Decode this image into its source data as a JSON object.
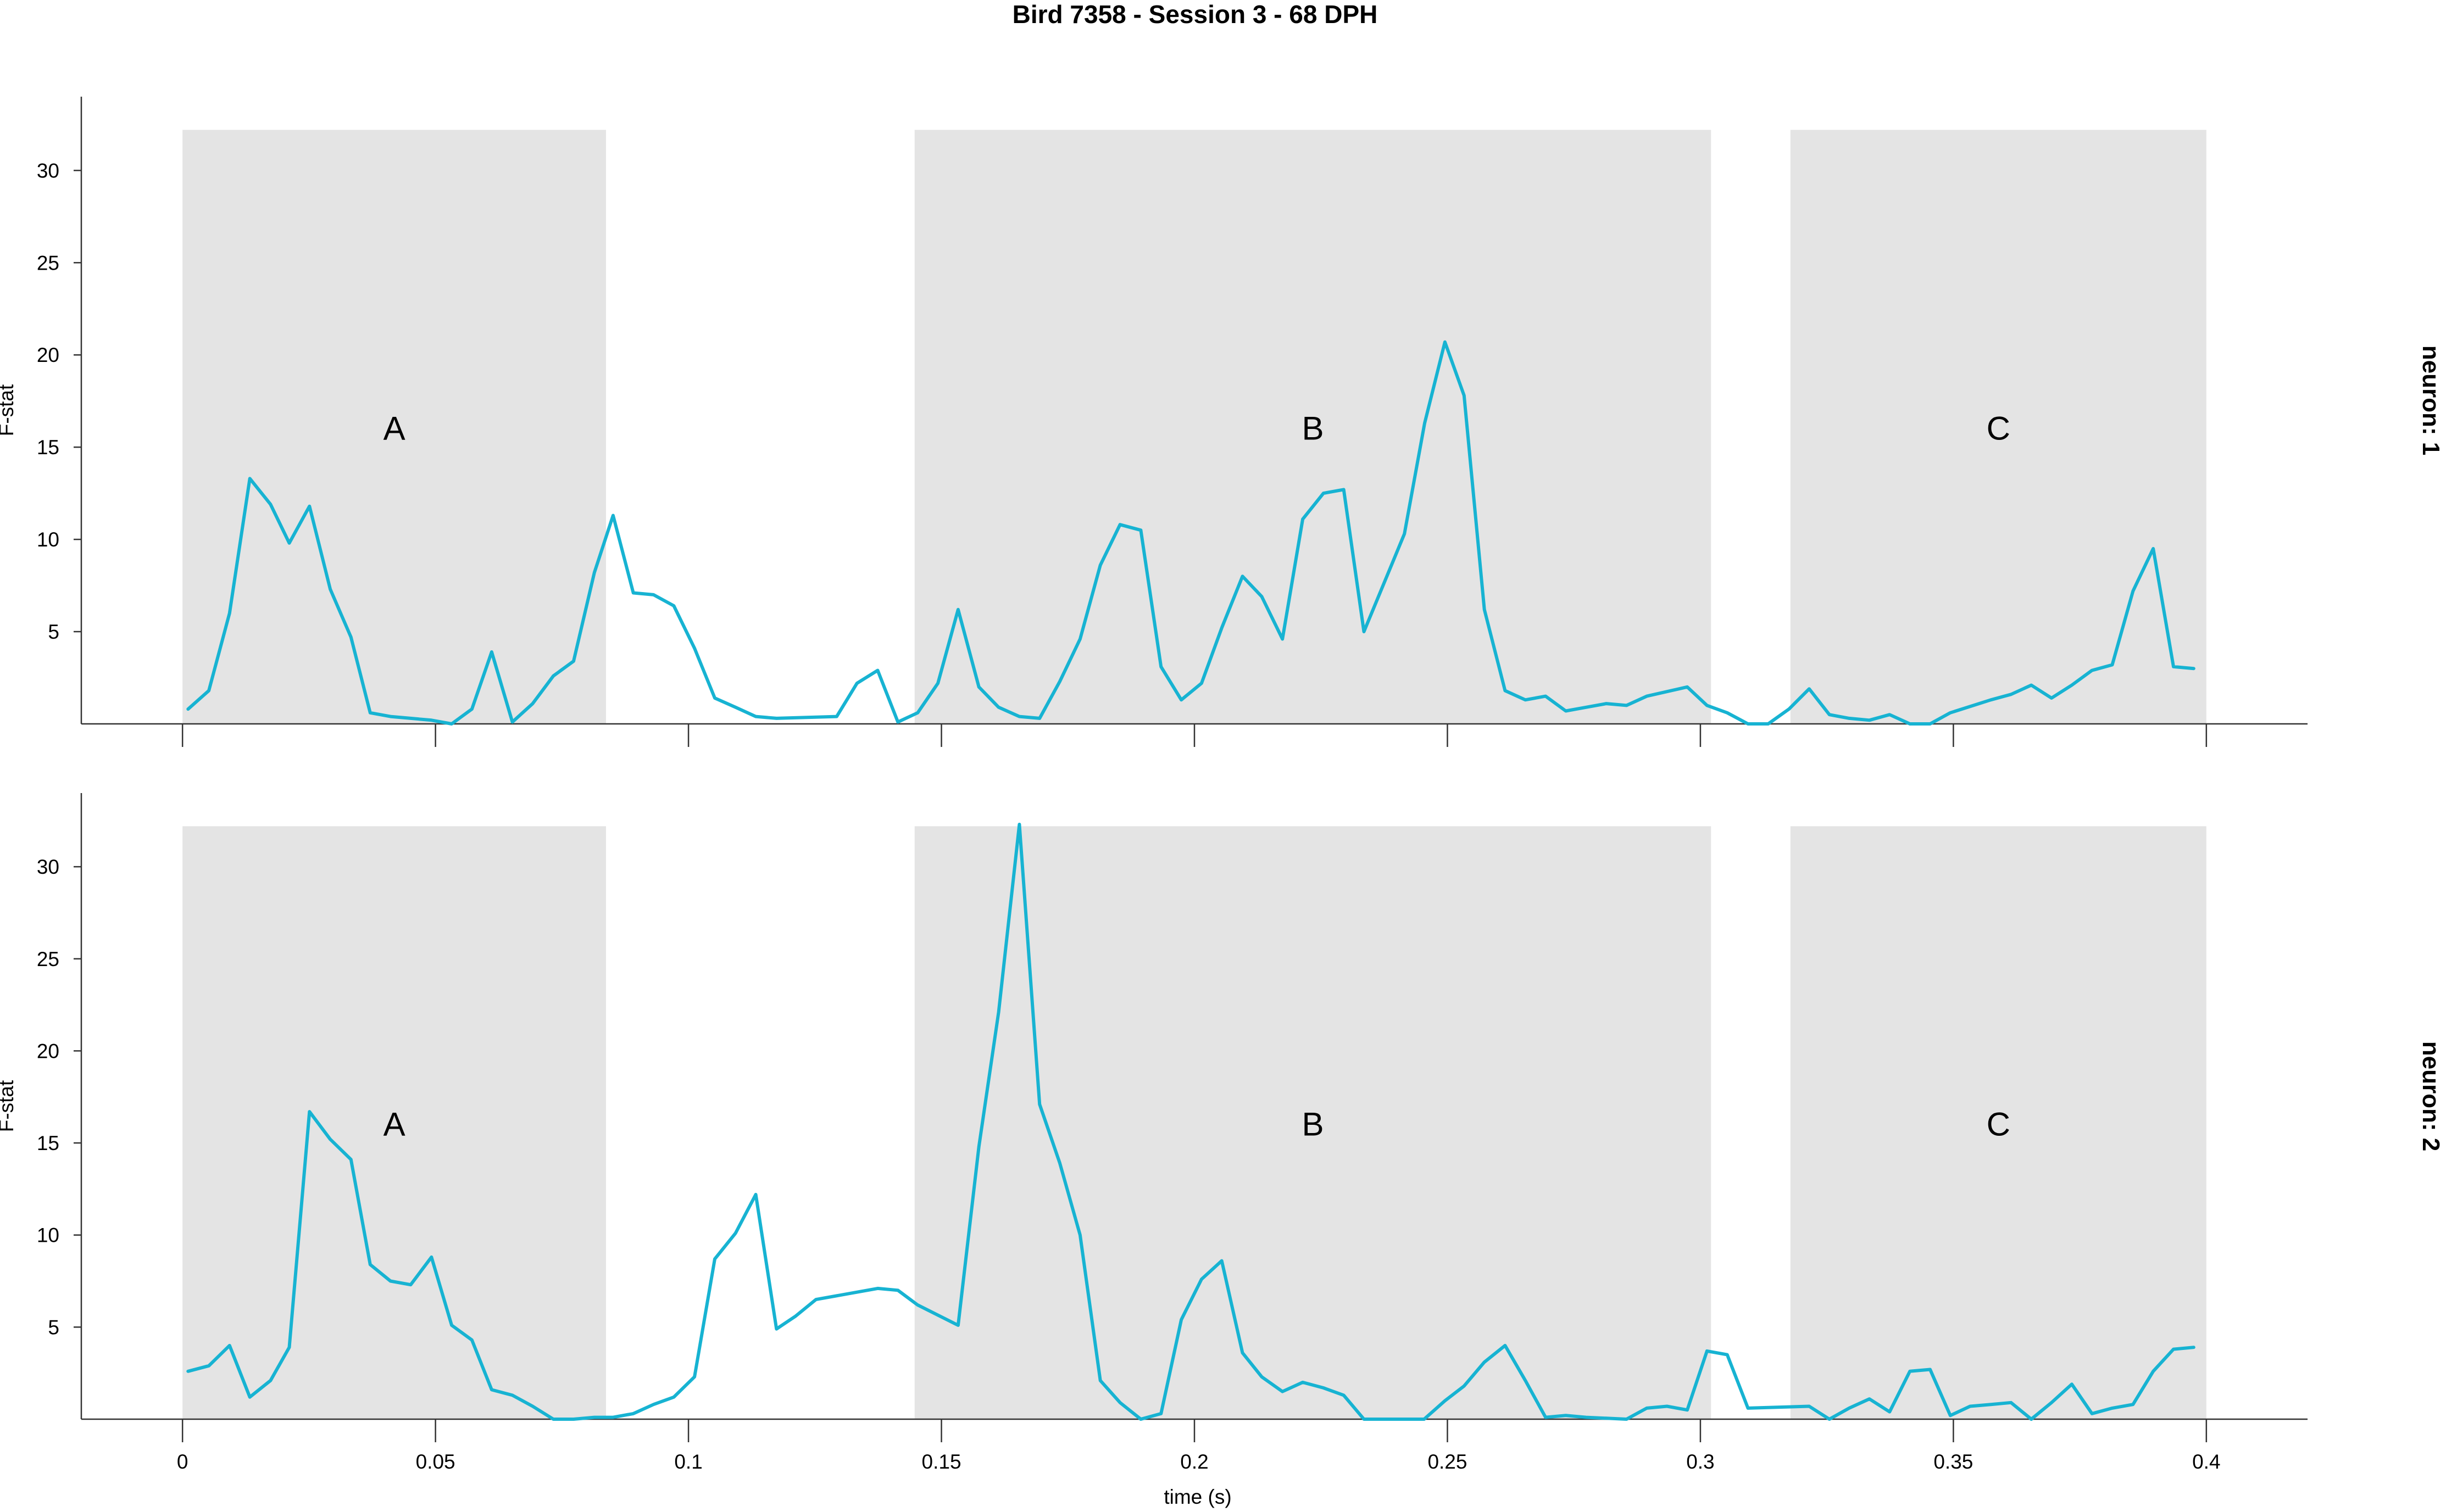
{
  "chart_data": {
    "type": "line",
    "title": "Bird 7358 - Session 3 - 68 DPH",
    "xlabel": "time (s)",
    "ylabel": "F-stat",
    "xlim": [
      -0.02,
      0.42
    ],
    "ylim": [
      0,
      34
    ],
    "x_ticks": [
      "0",
      "0.05",
      "0.1",
      "0.15",
      "0.2",
      "0.25",
      "0.3",
      "0.35",
      "0.4"
    ],
    "y_ticks": [
      "5",
      "10",
      "15",
      "20",
      "25",
      "30"
    ],
    "grid": false,
    "colors": {
      "line": "#17b3d2",
      "region": "#e4e4e4",
      "axis": "#333333"
    },
    "panels": [
      {
        "strip_label": "neuron: 1",
        "regions": [
          {
            "label": "A",
            "x0": 0.0,
            "x1": 0.0837
          },
          {
            "label": "B",
            "x0": 0.1447,
            "x1": 0.3021
          },
          {
            "label": "C",
            "x0": 0.3178,
            "x1": 0.4
          }
        ],
        "x": [
          0.0011,
          0.0052,
          0.0093,
          0.0133,
          0.0174,
          0.0211,
          0.0251,
          0.0292,
          0.0333,
          0.0371,
          0.0411,
          0.0451,
          0.0492,
          0.0532,
          0.0572,
          0.0611,
          0.0652,
          0.0692,
          0.0733,
          0.0773,
          0.0814,
          0.0851,
          0.0891,
          0.0931,
          0.0971,
          0.1012,
          0.1052,
          0.1093,
          0.1133,
          0.1174,
          0.1293,
          0.1333,
          0.1374,
          0.1414,
          0.1453,
          0.1493,
          0.1533,
          0.1574,
          0.1613,
          0.1654,
          0.1694,
          0.1734,
          0.1774,
          0.1814,
          0.1853,
          0.1894,
          0.1934,
          0.1974,
          0.2014,
          0.2054,
          0.2095,
          0.2133,
          0.2174,
          0.2214,
          0.2255,
          0.2295,
          0.2335,
          0.2415,
          0.2455,
          0.2495,
          0.2533,
          0.2573,
          0.2614,
          0.2654,
          0.2694,
          0.2734,
          0.2774,
          0.2814,
          0.2854,
          0.2894,
          0.2974,
          0.3013,
          0.3053,
          0.3094,
          0.3134,
          0.3175,
          0.3215,
          0.3255,
          0.3294,
          0.3334,
          0.3374,
          0.3414,
          0.3454,
          0.3494,
          0.3574,
          0.3614,
          0.3654,
          0.3694,
          0.3734,
          0.3774,
          0.3814,
          0.3855,
          0.3895,
          0.3935,
          0.3975
        ],
        "y": [
          0.8,
          1.8,
          6.0,
          13.3,
          11.9,
          9.8,
          11.8,
          7.3,
          4.7,
          0.6,
          0.4,
          0.3,
          0.2,
          0.0,
          0.8,
          3.9,
          0.1,
          1.1,
          2.6,
          3.4,
          8.2,
          11.3,
          7.1,
          7.0,
          6.4,
          4.1,
          1.4,
          0.9,
          0.4,
          0.3,
          0.4,
          2.2,
          2.9,
          0.1,
          0.6,
          2.2,
          6.2,
          2.0,
          0.9,
          0.4,
          0.3,
          2.3,
          4.6,
          8.6,
          10.8,
          10.5,
          3.1,
          1.3,
          2.2,
          5.2,
          8.0,
          6.9,
          4.6,
          11.1,
          12.5,
          12.7,
          5.0,
          10.3,
          16.3,
          20.7,
          17.8,
          6.2,
          1.8,
          1.3,
          1.5,
          0.7,
          0.9,
          1.1,
          1.0,
          1.5,
          2.0,
          1.0,
          0.6,
          0.0,
          0.0,
          0.8,
          1.9,
          0.5,
          0.3,
          0.2,
          0.5,
          0.0,
          0.0,
          0.6,
          1.3,
          1.6,
          2.1,
          1.4,
          2.1,
          2.9,
          3.2,
          7.2,
          9.5,
          3.1,
          3.0
        ]
      },
      {
        "strip_label": "neuron: 2",
        "regions": [
          {
            "label": "A",
            "x0": 0.0,
            "x1": 0.0837
          },
          {
            "label": "B",
            "x0": 0.1447,
            "x1": 0.3021
          },
          {
            "label": "C",
            "x0": 0.3178,
            "x1": 0.4
          }
        ],
        "x": [
          0.0011,
          0.0052,
          0.0093,
          0.0133,
          0.0174,
          0.0211,
          0.0251,
          0.0292,
          0.0333,
          0.0371,
          0.0411,
          0.0451,
          0.0492,
          0.0532,
          0.0572,
          0.0611,
          0.0652,
          0.0692,
          0.0733,
          0.0773,
          0.0814,
          0.0851,
          0.0891,
          0.0931,
          0.0971,
          0.1012,
          0.1052,
          0.1093,
          0.1133,
          0.1174,
          0.1212,
          0.1252,
          0.1374,
          0.1414,
          0.1453,
          0.1533,
          0.1574,
          0.1613,
          0.1654,
          0.1694,
          0.1734,
          0.1774,
          0.1814,
          0.1853,
          0.1894,
          0.1934,
          0.1974,
          0.2014,
          0.2054,
          0.2095,
          0.2133,
          0.2174,
          0.2214,
          0.2255,
          0.2295,
          0.2335,
          0.2454,
          0.2495,
          0.2533,
          0.2573,
          0.2614,
          0.2654,
          0.2694,
          0.2734,
          0.2774,
          0.2854,
          0.2894,
          0.2934,
          0.2974,
          0.3013,
          0.3053,
          0.3094,
          0.3215,
          0.3255,
          0.3294,
          0.3334,
          0.3374,
          0.3414,
          0.3454,
          0.3494,
          0.3533,
          0.3574,
          0.3614,
          0.3654,
          0.3694,
          0.3734,
          0.3774,
          0.3814,
          0.3855,
          0.3895,
          0.3935,
          0.3975
        ],
        "y": [
          2.6,
          2.9,
          4.0,
          1.2,
          2.1,
          3.9,
          16.7,
          15.2,
          14.1,
          8.4,
          7.5,
          7.3,
          8.8,
          5.1,
          4.3,
          1.6,
          1.3,
          0.7,
          0.0,
          0.0,
          0.1,
          0.1,
          0.3,
          0.8,
          1.2,
          2.3,
          8.7,
          10.1,
          12.2,
          4.9,
          5.6,
          6.5,
          7.1,
          7.0,
          6.2,
          5.1,
          14.8,
          22.1,
          32.3,
          17.1,
          13.9,
          10.0,
          2.1,
          0.9,
          0.0,
          0.3,
          5.4,
          7.6,
          8.6,
          3.6,
          2.3,
          1.5,
          2.0,
          1.7,
          1.3,
          0.0,
          0.0,
          1.0,
          1.8,
          3.1,
          4.0,
          2.1,
          0.1,
          0.2,
          0.1,
          0.0,
          0.6,
          0.7,
          0.5,
          3.7,
          3.5,
          0.6,
          0.7,
          0.0,
          0.6,
          1.1,
          0.4,
          2.6,
          2.7,
          0.2,
          0.7,
          0.8,
          0.9,
          0.0,
          0.9,
          1.9,
          0.3,
          0.6,
          0.8,
          2.6,
          3.8,
          3.9
        ]
      }
    ]
  }
}
